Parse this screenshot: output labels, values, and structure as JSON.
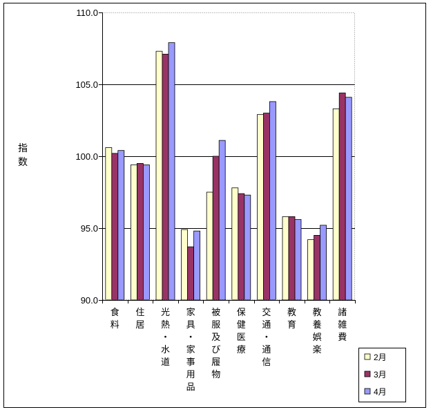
{
  "chart_data": {
    "type": "bar",
    "ylabel": "指数",
    "ylim": [
      90,
      110
    ],
    "yticks": [
      "110.0",
      "105.0",
      "100.0",
      "95.0",
      "90.0"
    ],
    "ytick_values": [
      110,
      105,
      100,
      95,
      90
    ],
    "grid": "major horizontal at 95, 100, 105",
    "legend_position": "bottom-right",
    "categories": [
      "食料",
      "住居",
      "光熱・水道",
      "家具・家事用品",
      "被服及び履物",
      "保健医療",
      "交通・通信",
      "教育",
      "教養娯楽",
      "諸雑費"
    ],
    "series": [
      {
        "name": "2月",
        "color": "#FFFFCC",
        "values": [
          100.6,
          99.4,
          107.3,
          94.9,
          97.5,
          97.8,
          102.9,
          95.8,
          94.2,
          103.3
        ]
      },
      {
        "name": "3月",
        "color": "#993366",
        "values": [
          100.2,
          99.5,
          107.1,
          93.7,
          100.0,
          97.4,
          103.0,
          95.8,
          94.5,
          104.4
        ]
      },
      {
        "name": "4月",
        "color": "#9999FF",
        "values": [
          100.4,
          99.4,
          107.9,
          94.8,
          101.1,
          97.3,
          103.8,
          95.6,
          95.2,
          104.1
        ]
      }
    ]
  }
}
